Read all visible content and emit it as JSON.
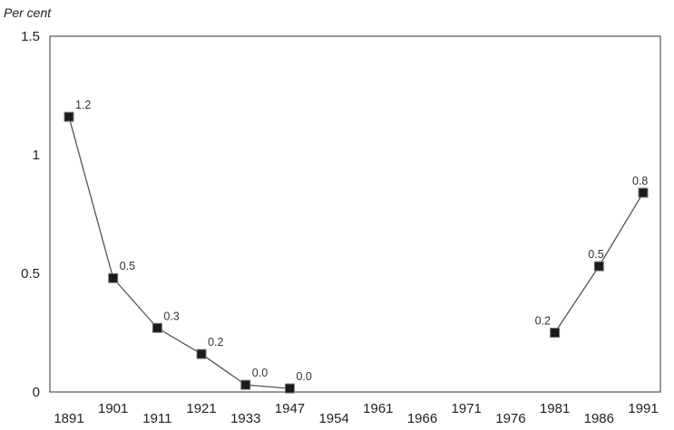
{
  "chart_data": {
    "type": "line",
    "title": "",
    "ylabel": "Per cent",
    "xlabel": "",
    "ylim": [
      0,
      1.5
    ],
    "yticks": [
      "0",
      "0.5",
      "1",
      "1.5"
    ],
    "categories": [
      "1891",
      "1901",
      "1911",
      "1921",
      "1933",
      "1947",
      "1954",
      "1961",
      "1966",
      "1971",
      "1976",
      "1981",
      "1986",
      "1991"
    ],
    "series": [
      {
        "values": [
          1.16,
          0.48,
          0.27,
          0.16,
          0.03,
          0.015,
          null,
          null,
          null,
          null,
          null,
          0.25,
          0.53,
          0.84
        ],
        "labels": [
          "1.2",
          "0.5",
          "0.3",
          "0.2",
          "0.0",
          "0.0",
          null,
          null,
          null,
          null,
          null,
          "0.2",
          "0.5",
          "0.8"
        ]
      }
    ],
    "grid": false,
    "legend": "none",
    "colors": {
      "line": "#555555",
      "marker": "#1a1a1a",
      "axis": "#333333"
    }
  }
}
